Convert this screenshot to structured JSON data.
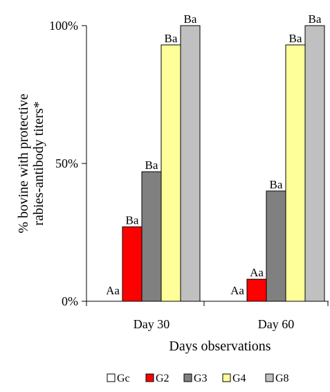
{
  "chart_data": {
    "type": "bar",
    "ylabel_lines": [
      "% bovine with protective",
      "rabies-antibody titers*"
    ],
    "xlabel": "Days observations",
    "categories": [
      "Day 30",
      "Day 60"
    ],
    "ylim": [
      0,
      100
    ],
    "yticks": [
      {
        "value": 0,
        "label": "0%"
      },
      {
        "value": 50,
        "label": "50%"
      },
      {
        "value": 100,
        "label": "100%"
      }
    ],
    "grid": false,
    "legend_position": "bottom",
    "series": [
      {
        "name": "Gc",
        "color": "#ffffff",
        "values": [
          0,
          0
        ],
        "labels": [
          "Aa",
          "Aa"
        ]
      },
      {
        "name": "G2",
        "color": "#ff0000",
        "values": [
          27,
          8
        ],
        "labels": [
          "Ba",
          "Aa"
        ]
      },
      {
        "name": "G3",
        "color": "#808080",
        "values": [
          47,
          40
        ],
        "labels": [
          "Ba",
          "Ba"
        ]
      },
      {
        "name": "G4",
        "color": "#ffff99",
        "values": [
          93,
          93
        ],
        "labels": [
          "Ba",
          "Ba"
        ]
      },
      {
        "name": "G8",
        "color": "#c0c0c0",
        "values": [
          100,
          100
        ],
        "labels": [
          "Ba",
          "Ba"
        ]
      }
    ]
  }
}
